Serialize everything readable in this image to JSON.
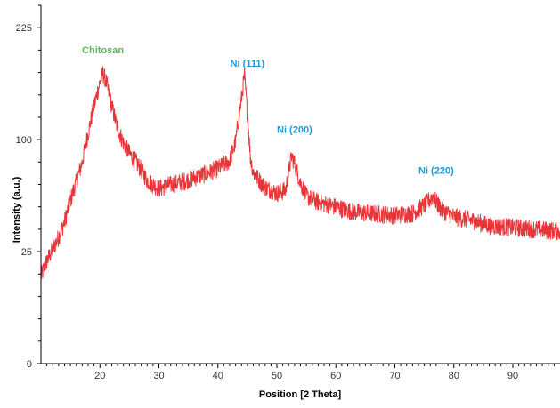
{
  "chart_data": {
    "type": "line",
    "xlabel": "Position [2 Theta]",
    "ylabel": "Intensity (a.u.)",
    "xlim": [
      10,
      98
    ],
    "ylim": [
      0,
      256
    ],
    "x_ticks": [
      20,
      30,
      40,
      50,
      60,
      70,
      80,
      90
    ],
    "y_ticks": [
      0,
      25,
      100,
      225
    ],
    "y_scale": "sqrt",
    "grid": false,
    "series": [
      {
        "color": "#e8353a",
        "x": [
          10.0,
          11.0,
          12.0,
          13.0,
          14.0,
          15.0,
          16.0,
          17.0,
          18.0,
          19.0,
          20.0,
          20.5,
          21.0,
          22.0,
          23.0,
          24.0,
          25.0,
          26.0,
          27.0,
          28.0,
          30.0,
          32.0,
          34.0,
          36.0,
          38.0,
          40.0,
          42.0,
          43.0,
          44.0,
          44.5,
          45.0,
          45.5,
          46.0,
          47.0,
          48.0,
          50.0,
          51.5,
          52.5,
          53.0,
          54.0,
          55.0,
          57.0,
          60.0,
          63.0,
          66.0,
          70.0,
          73.0,
          75.0,
          76.5,
          77.0,
          78.0,
          80.0,
          83.0,
          86.0,
          90.0,
          94.0,
          98.0
        ],
        "y": [
          15,
          21,
          26,
          32,
          40,
          53,
          66,
          81,
          106,
          132,
          158,
          168,
          160,
          132,
          110,
          97,
          88,
          82,
          75,
          67,
          61,
          64,
          66,
          69,
          72,
          76,
          82,
          98,
          140,
          165,
          125,
          85,
          73,
          67,
          62,
          58,
          60,
          86,
          80,
          65,
          56,
          52,
          49,
          46,
          45,
          44,
          45,
          50,
          56,
          52,
          47,
          43,
          41,
          38,
          37,
          36,
          35
        ]
      }
    ],
    "annotations": [
      {
        "text": "Chitosan",
        "x": 20.5,
        "y": 192,
        "color": "#5cb85c"
      },
      {
        "text": "Ni (111)",
        "x": 45.0,
        "y": 176,
        "color": "#1f9bd7"
      },
      {
        "text": "Ni (200)",
        "x": 53.0,
        "y": 106,
        "color": "#1f9bd7"
      },
      {
        "text": "Ni (220)",
        "x": 77.0,
        "y": 72,
        "color": "#1f9bd7"
      }
    ]
  }
}
